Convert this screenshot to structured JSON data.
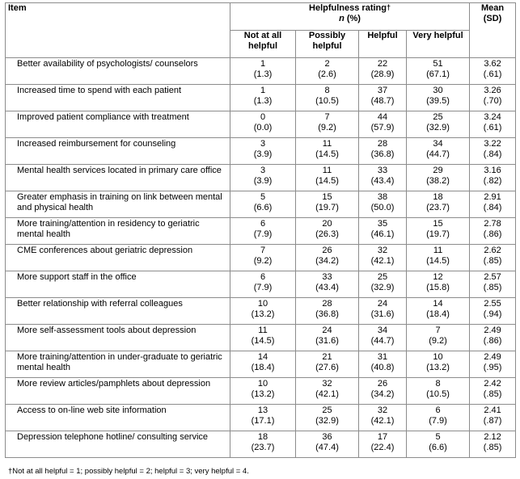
{
  "header": {
    "item": "Item",
    "group_title": "Helpfulness rating",
    "group_mark": "†",
    "group_n": "n",
    "group_pct": " (%)",
    "cols": [
      "Not at all helpful",
      "Possibly helpful",
      "Helpful",
      "Very helpful"
    ],
    "mean": "Mean",
    "sd": "(SD)"
  },
  "rows": [
    {
      "item": "Better availability of psychologists/ counselors",
      "cells": [
        [
          "1",
          "(1.3)"
        ],
        [
          "2",
          "(2.6)"
        ],
        [
          "22",
          "(28.9)"
        ],
        [
          "51",
          "(67.1)"
        ]
      ],
      "mean": "3.62",
      "sd": "(.61)"
    },
    {
      "item": "Increased time to spend with each patient",
      "cells": [
        [
          "1",
          "(1.3)"
        ],
        [
          "8",
          "(10.5)"
        ],
        [
          "37",
          "(48.7)"
        ],
        [
          "30",
          "(39.5)"
        ]
      ],
      "mean": "3.26",
      "sd": "(.70)"
    },
    {
      "item": "Improved patient compliance with treatment",
      "cells": [
        [
          "0",
          "(0.0)"
        ],
        [
          "7",
          "(9.2)"
        ],
        [
          "44",
          "(57.9)"
        ],
        [
          "25",
          "(32.9)"
        ]
      ],
      "mean": "3.24",
      "sd": "(.61)"
    },
    {
      "item": "Increased reimbursement for counseling",
      "cells": [
        [
          "3",
          "(3.9)"
        ],
        [
          "11",
          "(14.5)"
        ],
        [
          "28",
          "(36.8)"
        ],
        [
          "34",
          "(44.7)"
        ]
      ],
      "mean": "3.22",
      "sd": "(.84)"
    },
    {
      "item": "Mental health services located in primary care office",
      "cells": [
        [
          "3",
          "(3.9)"
        ],
        [
          "11",
          "(14.5)"
        ],
        [
          "33",
          "(43.4)"
        ],
        [
          "29",
          "(38.2)"
        ]
      ],
      "mean": "3.16",
      "sd": "(.82)"
    },
    {
      "item": "Greater emphasis in training on link between mental and physical health",
      "cells": [
        [
          "5",
          "(6.6)"
        ],
        [
          "15",
          "(19.7)"
        ],
        [
          "38",
          "(50.0)"
        ],
        [
          "18",
          "(23.7)"
        ]
      ],
      "mean": "2.91",
      "sd": "(.84)"
    },
    {
      "item": "More training/attention in residency to geriatric mental health",
      "cells": [
        [
          "6",
          "(7.9)"
        ],
        [
          "20",
          "(26.3)"
        ],
        [
          "35",
          "(46.1)"
        ],
        [
          "15",
          "(19.7)"
        ]
      ],
      "mean": "2.78",
      "sd": "(.86)"
    },
    {
      "item": "CME conferences about geriatric depression",
      "cells": [
        [
          "7",
          "(9.2)"
        ],
        [
          "26",
          "(34.2)"
        ],
        [
          "32",
          "(42.1)"
        ],
        [
          "11",
          "(14.5)"
        ]
      ],
      "mean": "2.62",
      "sd": "(.85)"
    },
    {
      "item": "More support staff in the office",
      "cells": [
        [
          "6",
          "(7.9)"
        ],
        [
          "33",
          "(43.4)"
        ],
        [
          "25",
          "(32.9)"
        ],
        [
          "12",
          "(15.8)"
        ]
      ],
      "mean": "2.57",
      "sd": "(.85)"
    },
    {
      "item": "Better relationship with referral colleagues",
      "cells": [
        [
          "10",
          "(13.2)"
        ],
        [
          "28",
          "(36.8)"
        ],
        [
          "24",
          "(31.6)"
        ],
        [
          "14",
          "(18.4)"
        ]
      ],
      "mean": "2.55",
      "sd": "(.94)"
    },
    {
      "item": "More self-assessment tools about depression",
      "cells": [
        [
          "11",
          "(14.5)"
        ],
        [
          "24",
          "(31.6)"
        ],
        [
          "34",
          "(44.7)"
        ],
        [
          "7",
          "(9.2)"
        ]
      ],
      "mean": "2.49",
      "sd": "(.86)"
    },
    {
      "item": "More training/attention in under-graduate to geriatric mental health",
      "cells": [
        [
          "14",
          "(18.4)"
        ],
        [
          "21",
          "(27.6)"
        ],
        [
          "31",
          "(40.8)"
        ],
        [
          "10",
          "(13.2)"
        ]
      ],
      "mean": "2.49",
      "sd": "(.95)"
    },
    {
      "item": "More review articles/pamphlets about depression",
      "cells": [
        [
          "10",
          "(13.2)"
        ],
        [
          "32",
          "(42.1)"
        ],
        [
          "26",
          "(34.2)"
        ],
        [
          "8",
          "(10.5)"
        ]
      ],
      "mean": "2.42",
      "sd": "(.85)"
    },
    {
      "item": "Access to on-line web site information",
      "cells": [
        [
          "13",
          "(17.1)"
        ],
        [
          "25",
          "(32.9)"
        ],
        [
          "32",
          "(42.1)"
        ],
        [
          "6",
          "(7.9)"
        ]
      ],
      "mean": "2.41",
      "sd": "(.87)"
    },
    {
      "item": "Depression telephone hotline/ consulting service",
      "cells": [
        [
          "18",
          "(23.7)"
        ],
        [
          "36",
          "(47.4)"
        ],
        [
          "17",
          "(22.4)"
        ],
        [
          "5",
          "(6.6)"
        ]
      ],
      "mean": "2.12",
      "sd": "(.85)"
    }
  ],
  "footnote": "†Not at all helpful = 1; possibly helpful = 2; helpful = 3; very helpful = 4."
}
